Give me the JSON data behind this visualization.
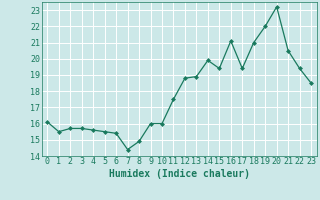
{
  "x": [
    0,
    1,
    2,
    3,
    4,
    5,
    6,
    7,
    8,
    9,
    10,
    11,
    12,
    13,
    14,
    15,
    16,
    17,
    18,
    19,
    20,
    21,
    22,
    23
  ],
  "y": [
    16.1,
    15.5,
    15.7,
    15.7,
    15.6,
    15.5,
    15.4,
    14.4,
    14.9,
    16.0,
    16.0,
    17.5,
    18.8,
    18.9,
    19.9,
    19.4,
    21.1,
    19.4,
    21.0,
    22.0,
    23.2,
    20.5,
    19.4,
    18.5
  ],
  "xlabel": "Humidex (Indice chaleur)",
  "ylim": [
    14,
    23.5
  ],
  "yticks": [
    14,
    15,
    16,
    17,
    18,
    19,
    20,
    21,
    22,
    23
  ],
  "xlim": [
    -0.5,
    23.5
  ],
  "line_color": "#1a7a5e",
  "marker_color": "#1a7a5e",
  "bg_color": "#cce8e8",
  "grid_color": "#ffffff",
  "font_color": "#1a7a5e",
  "tick_fontsize": 6.0,
  "xlabel_fontsize": 7.0
}
